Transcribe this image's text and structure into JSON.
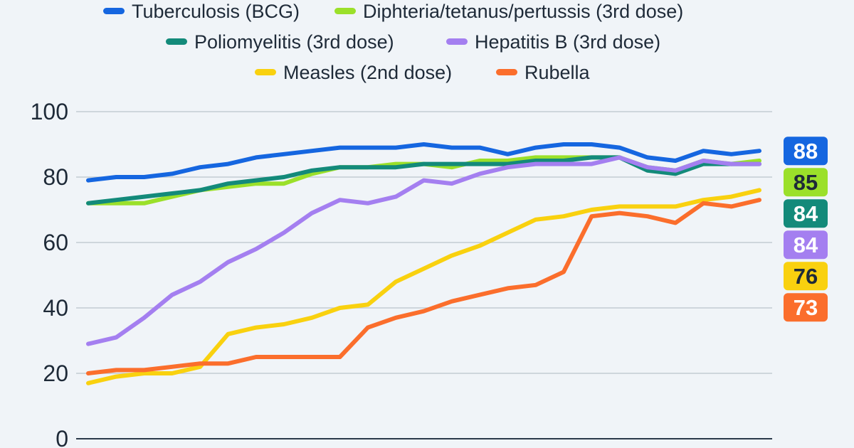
{
  "chart_data": {
    "type": "line",
    "ylim": [
      0,
      100
    ],
    "y_ticks": [
      0,
      20,
      40,
      60,
      80,
      100
    ],
    "grid": "horizontal",
    "legend_position": "top",
    "series": [
      {
        "name": "Tuberculosis (BCG)",
        "color": "#1566e0",
        "values": [
          79,
          80,
          80,
          81,
          83,
          84,
          86,
          87,
          88,
          89,
          89,
          89,
          90,
          89,
          89,
          87,
          89,
          90,
          90,
          89,
          86,
          85,
          88,
          87,
          88
        ],
        "end_label": "88",
        "end_text_color": "#ffffff"
      },
      {
        "name": "Diphteria/tetanus/pertussis (3rd dose)",
        "color": "#9be02a",
        "values": [
          72,
          72,
          72,
          74,
          76,
          77,
          78,
          78,
          81,
          83,
          83,
          84,
          84,
          83,
          85,
          85,
          86,
          86,
          86,
          86,
          83,
          82,
          85,
          84,
          85
        ],
        "end_label": "85",
        "end_text_color": "#1e2a38"
      },
      {
        "name": "Poliomyelitis (3rd dose)",
        "color": "#138a7a",
        "values": [
          72,
          73,
          74,
          75,
          76,
          78,
          79,
          80,
          82,
          83,
          83,
          83,
          84,
          84,
          84,
          84,
          85,
          85,
          86,
          86,
          82,
          81,
          84,
          84,
          84
        ],
        "end_label": "84",
        "end_text_color": "#ffffff"
      },
      {
        "name": "Hepatitis B (3rd dose)",
        "color": "#a47ff0",
        "values": [
          29,
          31,
          37,
          44,
          48,
          54,
          58,
          63,
          69,
          73,
          72,
          74,
          79,
          78,
          81,
          83,
          84,
          84,
          84,
          86,
          83,
          82,
          85,
          84,
          84
        ],
        "end_label": "84",
        "end_text_color": "#ffffff"
      },
      {
        "name": "Measles (2nd dose)",
        "color": "#f9d10f",
        "values": [
          17,
          19,
          20,
          20,
          22,
          32,
          34,
          35,
          37,
          40,
          41,
          48,
          52,
          56,
          59,
          63,
          67,
          68,
          70,
          71,
          71,
          71,
          73,
          74,
          76
        ],
        "end_label": "76",
        "end_text_color": "#1e2a38"
      },
      {
        "name": "Rubella",
        "color": "#fb6e2c",
        "values": [
          20,
          21,
          21,
          22,
          23,
          23,
          25,
          25,
          25,
          25,
          34,
          37,
          39,
          42,
          44,
          46,
          47,
          51,
          68,
          69,
          68,
          66,
          72,
          71,
          73
        ],
        "end_label": "73",
        "end_text_color": "#ffffff"
      }
    ]
  }
}
